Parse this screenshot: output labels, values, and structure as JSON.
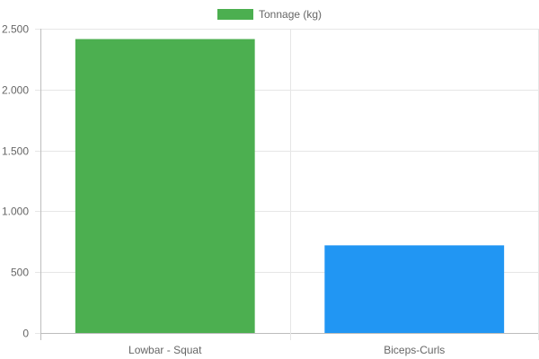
{
  "chart_data": {
    "type": "bar",
    "categories": [
      "Lowbar - Squat",
      "Biceps-Curls"
    ],
    "series": [
      {
        "name": "Tonnage (kg)",
        "values": [
          2415,
          720
        ]
      }
    ],
    "bar_colors": [
      "#4caf50",
      "#2196f3"
    ],
    "legend_color": "#4caf50",
    "ylim": [
      0,
      2500
    ],
    "yticks": [
      0,
      500,
      1000,
      1500,
      2000,
      2500
    ],
    "ytick_labels": [
      "0",
      "500",
      "1.000",
      "1.500",
      "2.000",
      "2.500"
    ],
    "legend_position": "top-center",
    "grid": true,
    "grid_color": "#e6e6e6",
    "text_color": "#666666"
  }
}
